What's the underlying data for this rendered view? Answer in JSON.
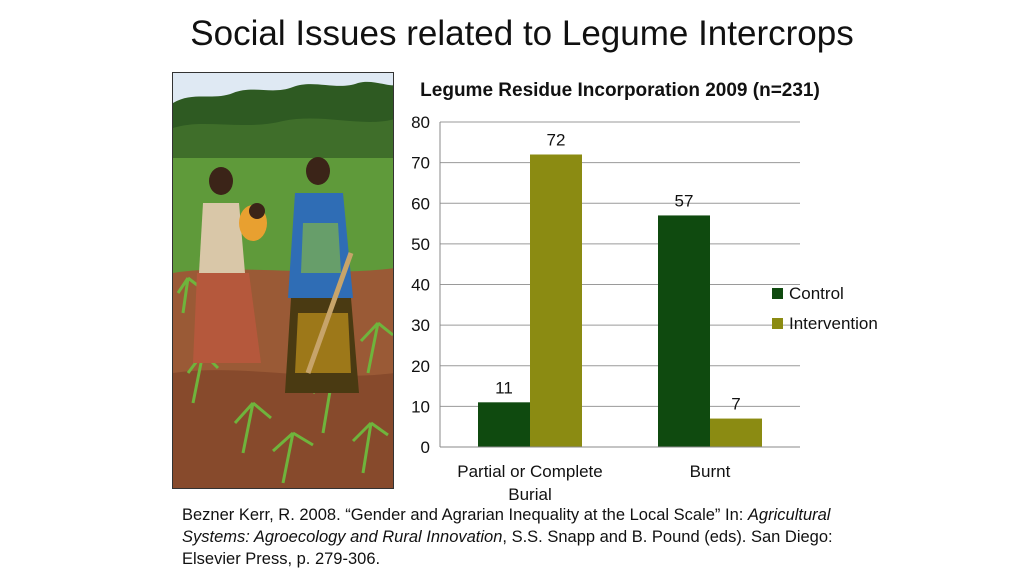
{
  "slide": {
    "title": "Social Issues related to Legume Intercrops"
  },
  "photo": {
    "subject": "two-women-with-baby-and-hoe-in-maize-field"
  },
  "chart_data": {
    "type": "bar",
    "title": "Legume Residue Incorporation 2009 (n=231)",
    "categories": [
      "Partial or Complete Burial",
      "Burnt"
    ],
    "category_lines": [
      [
        "Partial or Complete",
        "Burial"
      ],
      [
        "Burnt"
      ]
    ],
    "series": [
      {
        "name": "Control",
        "values": [
          11,
          57
        ],
        "color": "#0f4a0f"
      },
      {
        "name": "Intervention",
        "values": [
          72,
          7
        ],
        "color": "#8b8b12"
      }
    ],
    "ylim": [
      0,
      80
    ],
    "yticks": [
      0,
      10,
      20,
      30,
      40,
      50,
      60,
      70,
      80
    ],
    "grid": true,
    "legend": "right",
    "data_labels": true
  },
  "citation": {
    "line1": "Bezner Kerr, R. 2008. “Gender and Agrarian Inequality at the Local Scale” In: ",
    "book": "Agricultural Systems: Agroecology and Rural Innovation",
    "line2": ", S.S. Snapp and B. Pound (eds). San Diego: Elsevier Press, p. 279-306."
  }
}
